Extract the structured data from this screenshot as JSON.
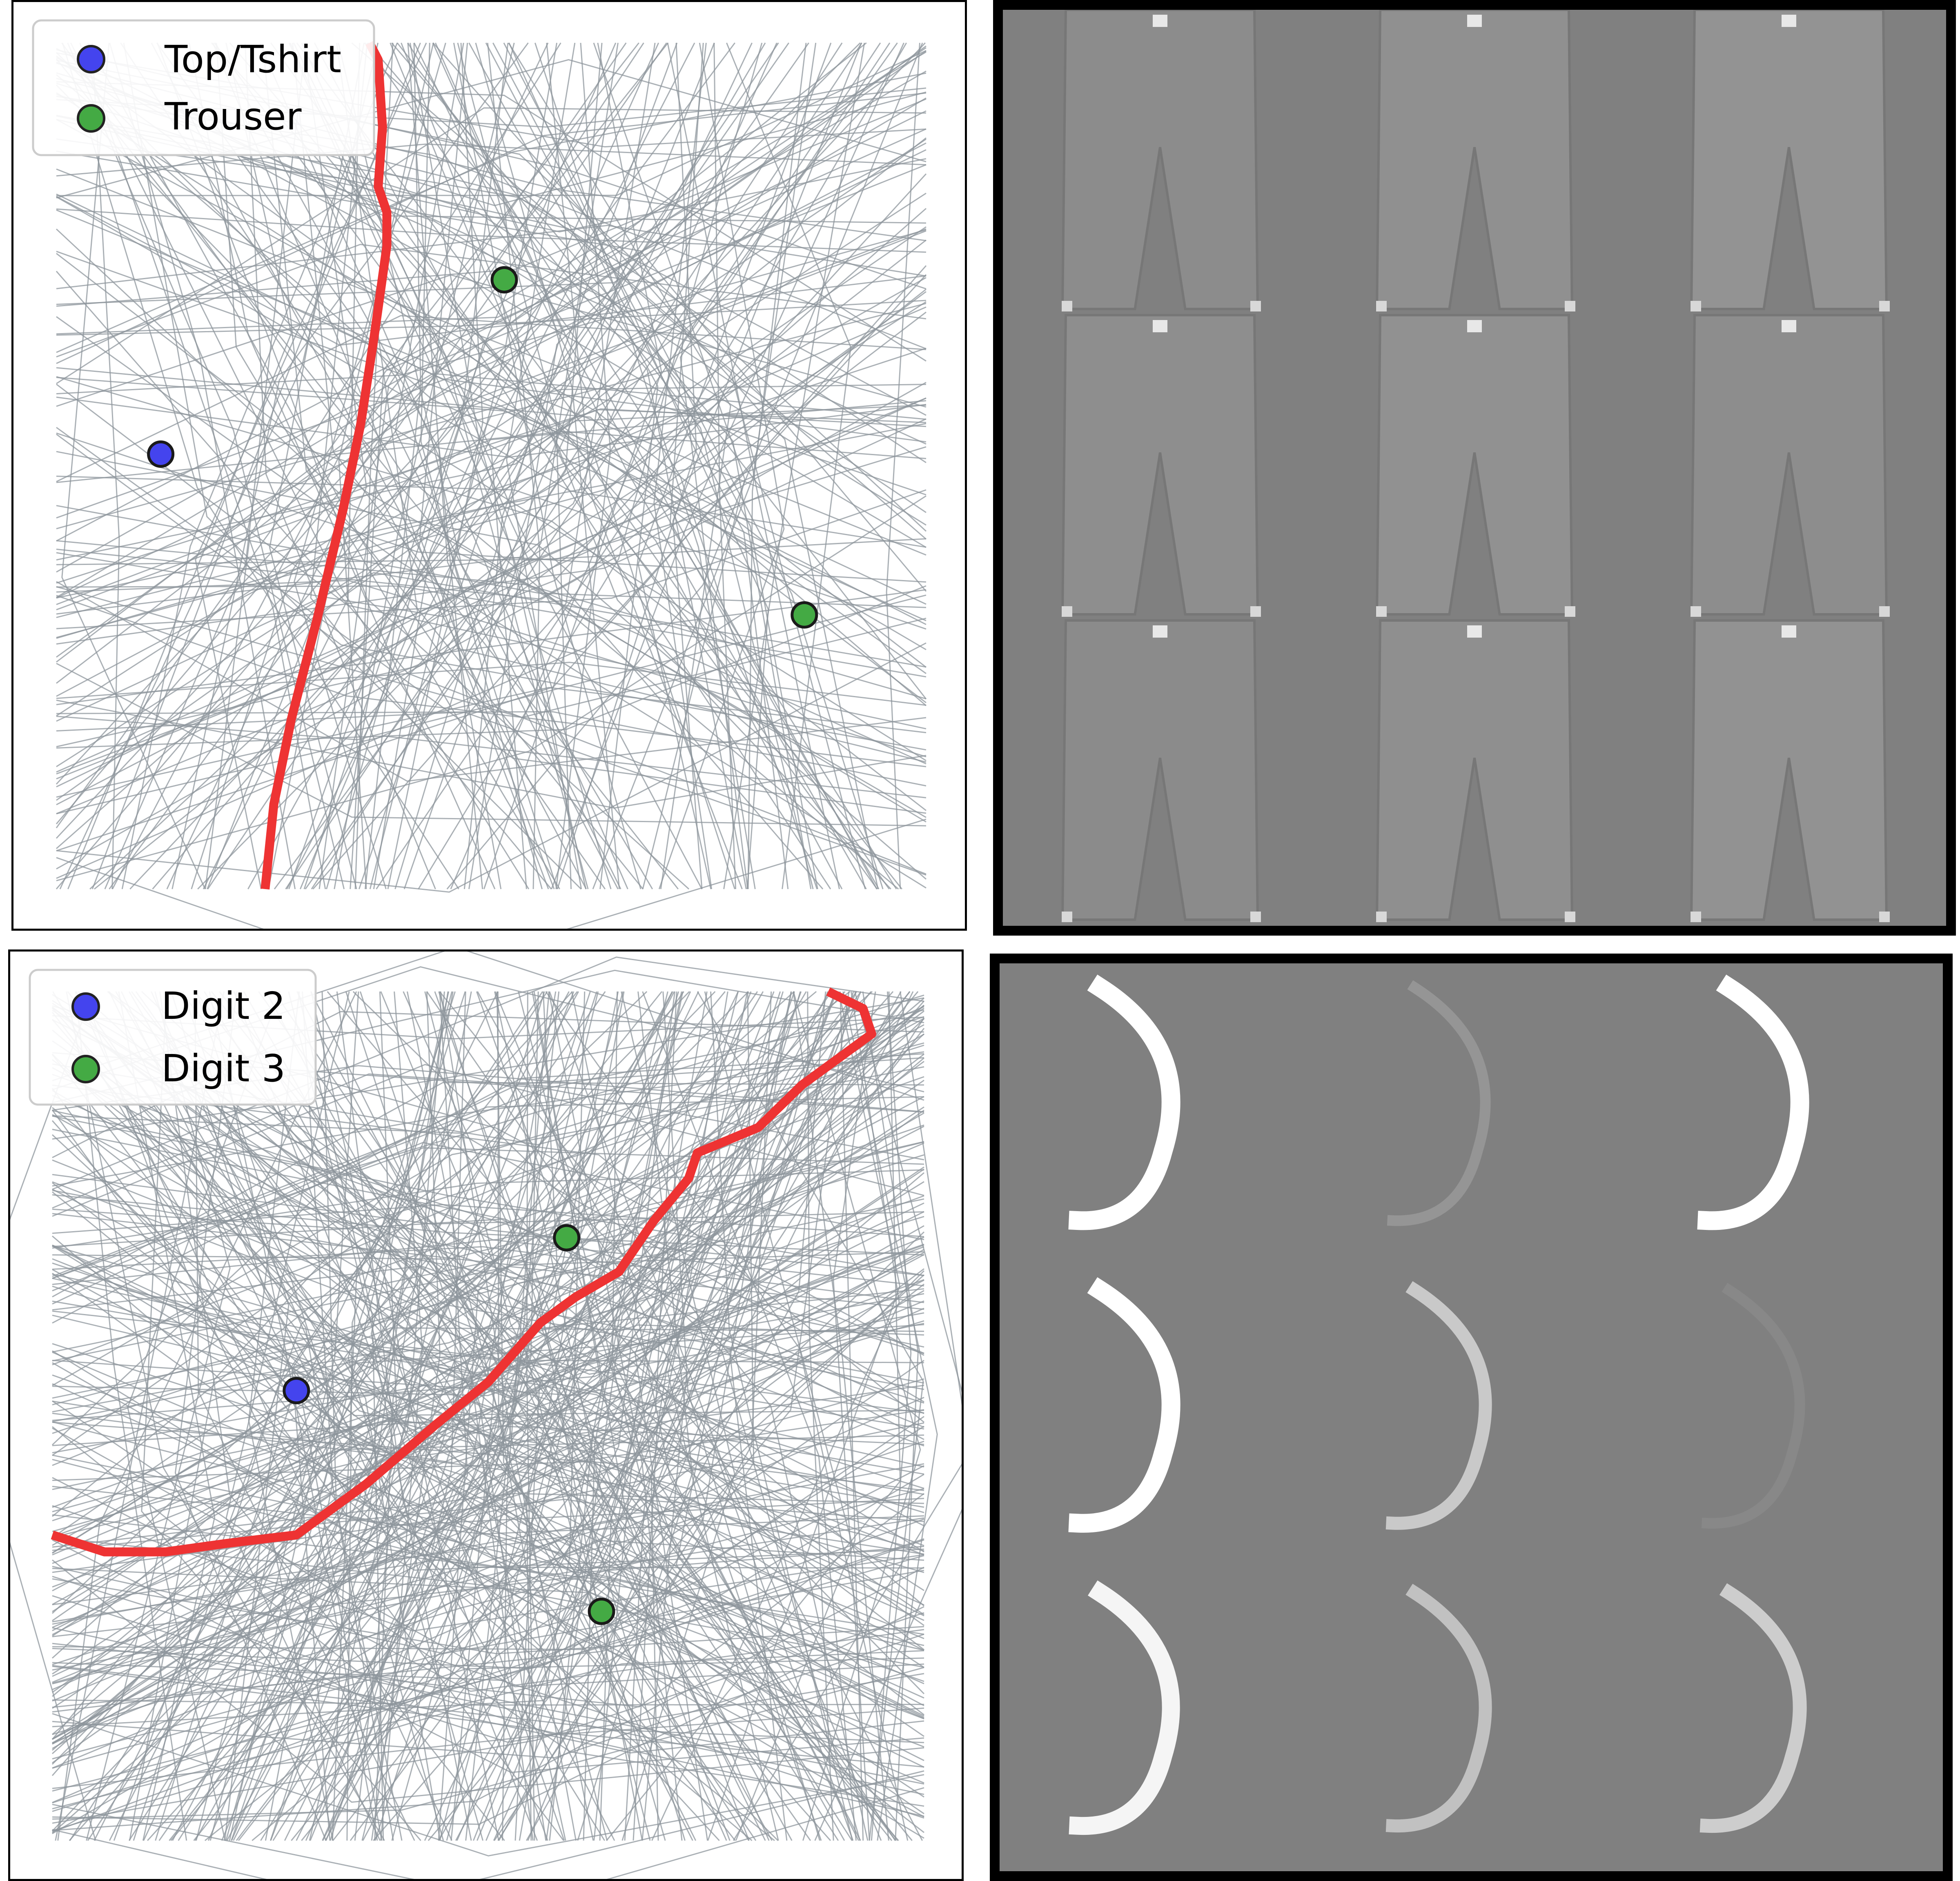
{
  "panels": {
    "top_left": {
      "legend": [
        {
          "label": "Top/Tshirt",
          "color": "#4444ee"
        },
        {
          "label": "Trouser",
          "color": "#44aa44"
        }
      ],
      "points": [
        {
          "class": "Top/Tshirt",
          "x": 0.12,
          "y": 0.486,
          "color": "#4444ee"
        },
        {
          "class": "Trouser",
          "x": 0.515,
          "y": 0.28,
          "color": "#44aa44"
        },
        {
          "class": "Trouser",
          "x": 0.86,
          "y": 0.676,
          "color": "#44aa44"
        }
      ],
      "boundary": [
        [
          0.24,
          1.0
        ],
        [
          0.25,
          0.9
        ],
        [
          0.27,
          0.8
        ],
        [
          0.3,
          0.68
        ],
        [
          0.33,
          0.55
        ],
        [
          0.35,
          0.45
        ],
        [
          0.365,
          0.35
        ],
        [
          0.38,
          0.24
        ],
        [
          0.38,
          0.2
        ],
        [
          0.37,
          0.17
        ],
        [
          0.375,
          0.1
        ],
        [
          0.37,
          0.02
        ],
        [
          0.36,
          0.0
        ]
      ],
      "boundary_color": "#ee3333",
      "line_color": "#8e959c"
    },
    "bottom_left": {
      "legend": [
        {
          "label": "Digit 2",
          "color": "#4444ee"
        },
        {
          "label": "Digit 3",
          "color": "#44aa44"
        }
      ],
      "points": [
        {
          "class": "Digit 2",
          "x": 0.28,
          "y": 0.47,
          "color": "#4444ee"
        },
        {
          "class": "Digit 3",
          "x": 0.59,
          "y": 0.29,
          "color": "#44aa44"
        },
        {
          "class": "Digit 3",
          "x": 0.63,
          "y": 0.73,
          "color": "#44aa44"
        }
      ],
      "boundary": [
        [
          0.0,
          0.64
        ],
        [
          0.06,
          0.66
        ],
        [
          0.13,
          0.66
        ],
        [
          0.2,
          0.65
        ],
        [
          0.28,
          0.64
        ],
        [
          0.36,
          0.58
        ],
        [
          0.44,
          0.51
        ],
        [
          0.5,
          0.46
        ],
        [
          0.56,
          0.39
        ],
        [
          0.6,
          0.36
        ],
        [
          0.65,
          0.33
        ],
        [
          0.69,
          0.27
        ],
        [
          0.73,
          0.22
        ],
        [
          0.74,
          0.19
        ],
        [
          0.81,
          0.16
        ],
        [
          0.86,
          0.11
        ],
        [
          0.9,
          0.08
        ],
        [
          0.94,
          0.05
        ],
        [
          0.93,
          0.02
        ],
        [
          0.89,
          0.0
        ]
      ],
      "boundary_color": "#ee3333",
      "line_color": "#8e959c"
    },
    "top_right": {
      "kind": "trouser-grid",
      "grid": [
        3,
        3
      ],
      "background": "#808080"
    },
    "bottom_right": {
      "kind": "digit-grid",
      "grid": [
        3,
        3
      ],
      "background": "#808080"
    }
  }
}
